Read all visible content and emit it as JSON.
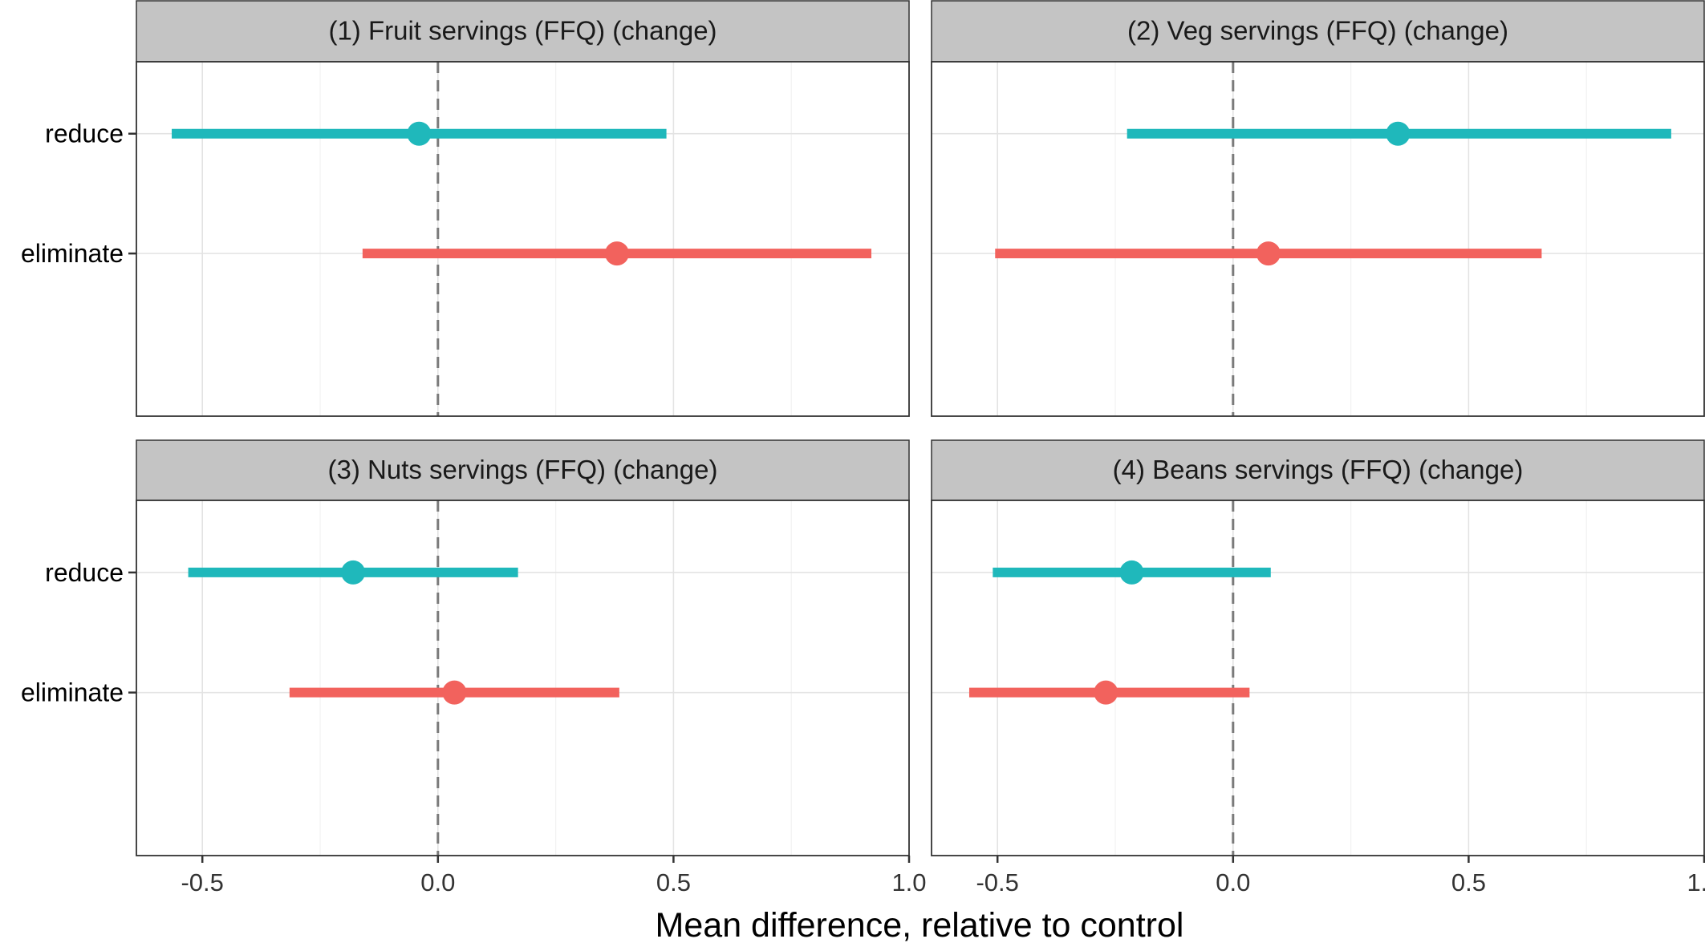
{
  "chart_data": {
    "type": "forest",
    "xlabel": "Mean difference, relative to control",
    "ylabel": "",
    "xlim": [
      -0.64,
      1.0
    ],
    "x_ticks": [
      -0.5,
      0.0,
      0.5,
      1.0
    ],
    "x_tick_labels": [
      "-0.5",
      "0.0",
      "0.5",
      "1.0"
    ],
    "reference_line": 0.0,
    "categories": [
      "reduce",
      "eliminate"
    ],
    "colors": {
      "reduce": "#1fb8bb",
      "eliminate": "#f2625d"
    },
    "grid": true,
    "legend": "none",
    "panels": [
      {
        "title": "(1) Fruit servings (FFQ) (change)",
        "series": [
          {
            "category": "reduce",
            "estimate": -0.04,
            "lower": -0.565,
            "upper": 0.485
          },
          {
            "category": "eliminate",
            "estimate": 0.38,
            "lower": -0.16,
            "upper": 0.92
          }
        ]
      },
      {
        "title": "(2) Veg servings (FFQ) (change)",
        "series": [
          {
            "category": "reduce",
            "estimate": 0.35,
            "lower": -0.225,
            "upper": 0.93
          },
          {
            "category": "eliminate",
            "estimate": 0.075,
            "lower": -0.505,
            "upper": 0.655
          }
        ]
      },
      {
        "title": "(3) Nuts servings (FFQ) (change)",
        "series": [
          {
            "category": "reduce",
            "estimate": -0.18,
            "lower": -0.53,
            "upper": 0.17
          },
          {
            "category": "eliminate",
            "estimate": 0.035,
            "lower": -0.315,
            "upper": 0.385
          }
        ]
      },
      {
        "title": "(4) Beans servings (FFQ) (change)",
        "series": [
          {
            "category": "reduce",
            "estimate": -0.215,
            "lower": -0.51,
            "upper": 0.08
          },
          {
            "category": "eliminate",
            "estimate": -0.27,
            "lower": -0.56,
            "upper": 0.035
          }
        ]
      }
    ]
  }
}
